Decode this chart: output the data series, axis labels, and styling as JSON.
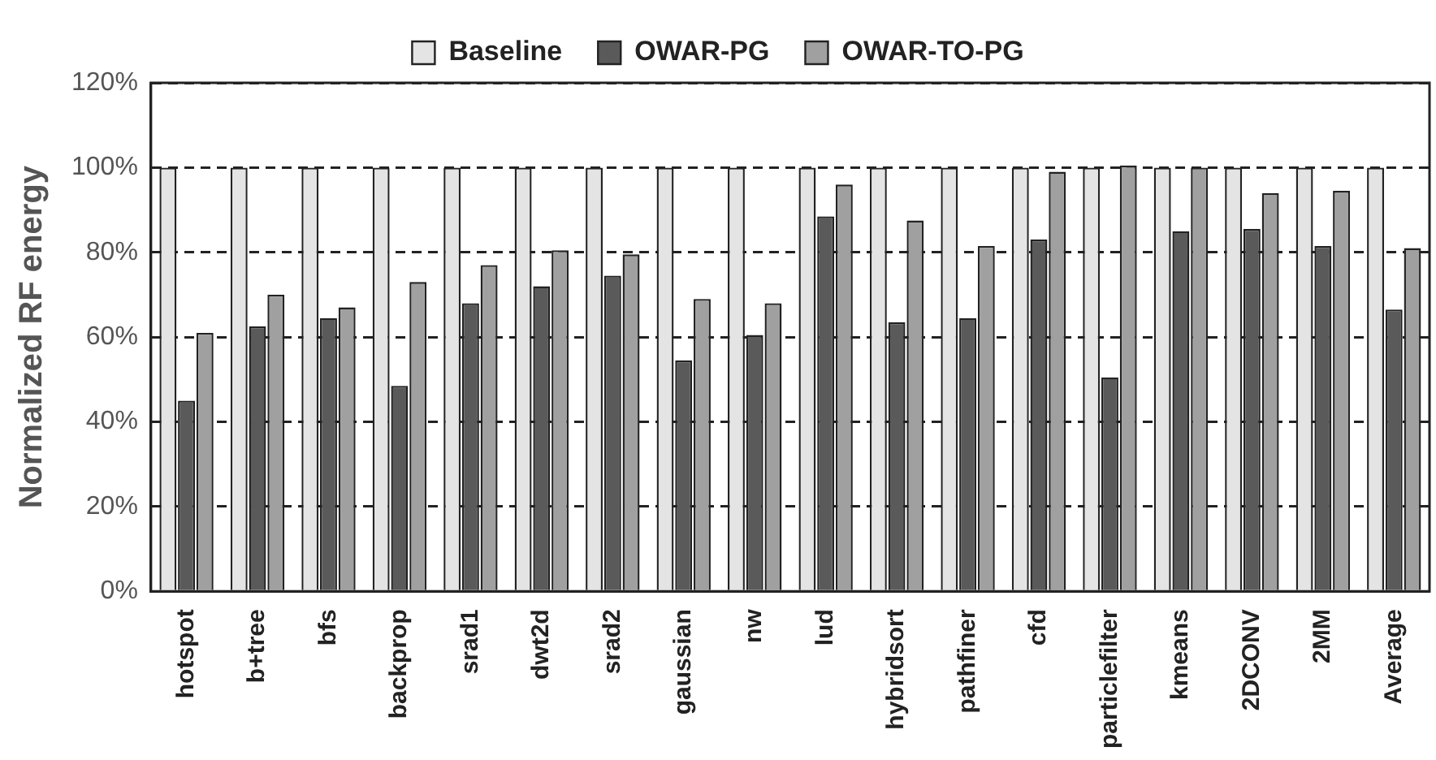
{
  "chart_data": {
    "type": "bar",
    "ylabel": "Normalized RF energy",
    "categories": [
      "hotspot",
      "b+tree",
      "bfs",
      "backprop",
      "srad1",
      "dwt2d",
      "srad2",
      "gaussian",
      "nw",
      "lud",
      "hybridsort",
      "pathfiner",
      "cfd",
      "particlefilter",
      "kmeans",
      "2DCONV",
      "2MM",
      "Average"
    ],
    "series": [
      {
        "name": "Baseline",
        "color": "#e4e4e4",
        "values": [
          100,
          100,
          100,
          100,
          100,
          100,
          100,
          100,
          100,
          100,
          100,
          100,
          100,
          100,
          100,
          100,
          100,
          100
        ]
      },
      {
        "name": "OWAR-PG",
        "color": "#5a5a5a",
        "values": [
          45,
          62.5,
          64.5,
          48.5,
          68,
          72,
          74.5,
          54.5,
          60.5,
          88.5,
          63.5,
          64.5,
          83,
          50.5,
          85,
          85.5,
          81.5,
          66.5
        ]
      },
      {
        "name": "OWAR-TO-PG",
        "color": "#a0a0a0",
        "values": [
          61,
          70,
          67,
          73,
          77,
          80.5,
          79.5,
          69,
          68,
          96,
          87.5,
          81.5,
          99,
          100.5,
          100,
          94,
          94.5,
          81
        ]
      }
    ],
    "ylim": [
      0,
      120
    ],
    "yticks": [
      {
        "value": 0,
        "label": "0%"
      },
      {
        "value": 20,
        "label": "20%"
      },
      {
        "value": 40,
        "label": "40%"
      },
      {
        "value": 60,
        "label": "60%"
      },
      {
        "value": 80,
        "label": "80%"
      },
      {
        "value": 100,
        "label": "100%"
      },
      {
        "value": 120,
        "label": "120%"
      }
    ],
    "grid": "y",
    "line_style": "dashed",
    "legend": "top"
  }
}
